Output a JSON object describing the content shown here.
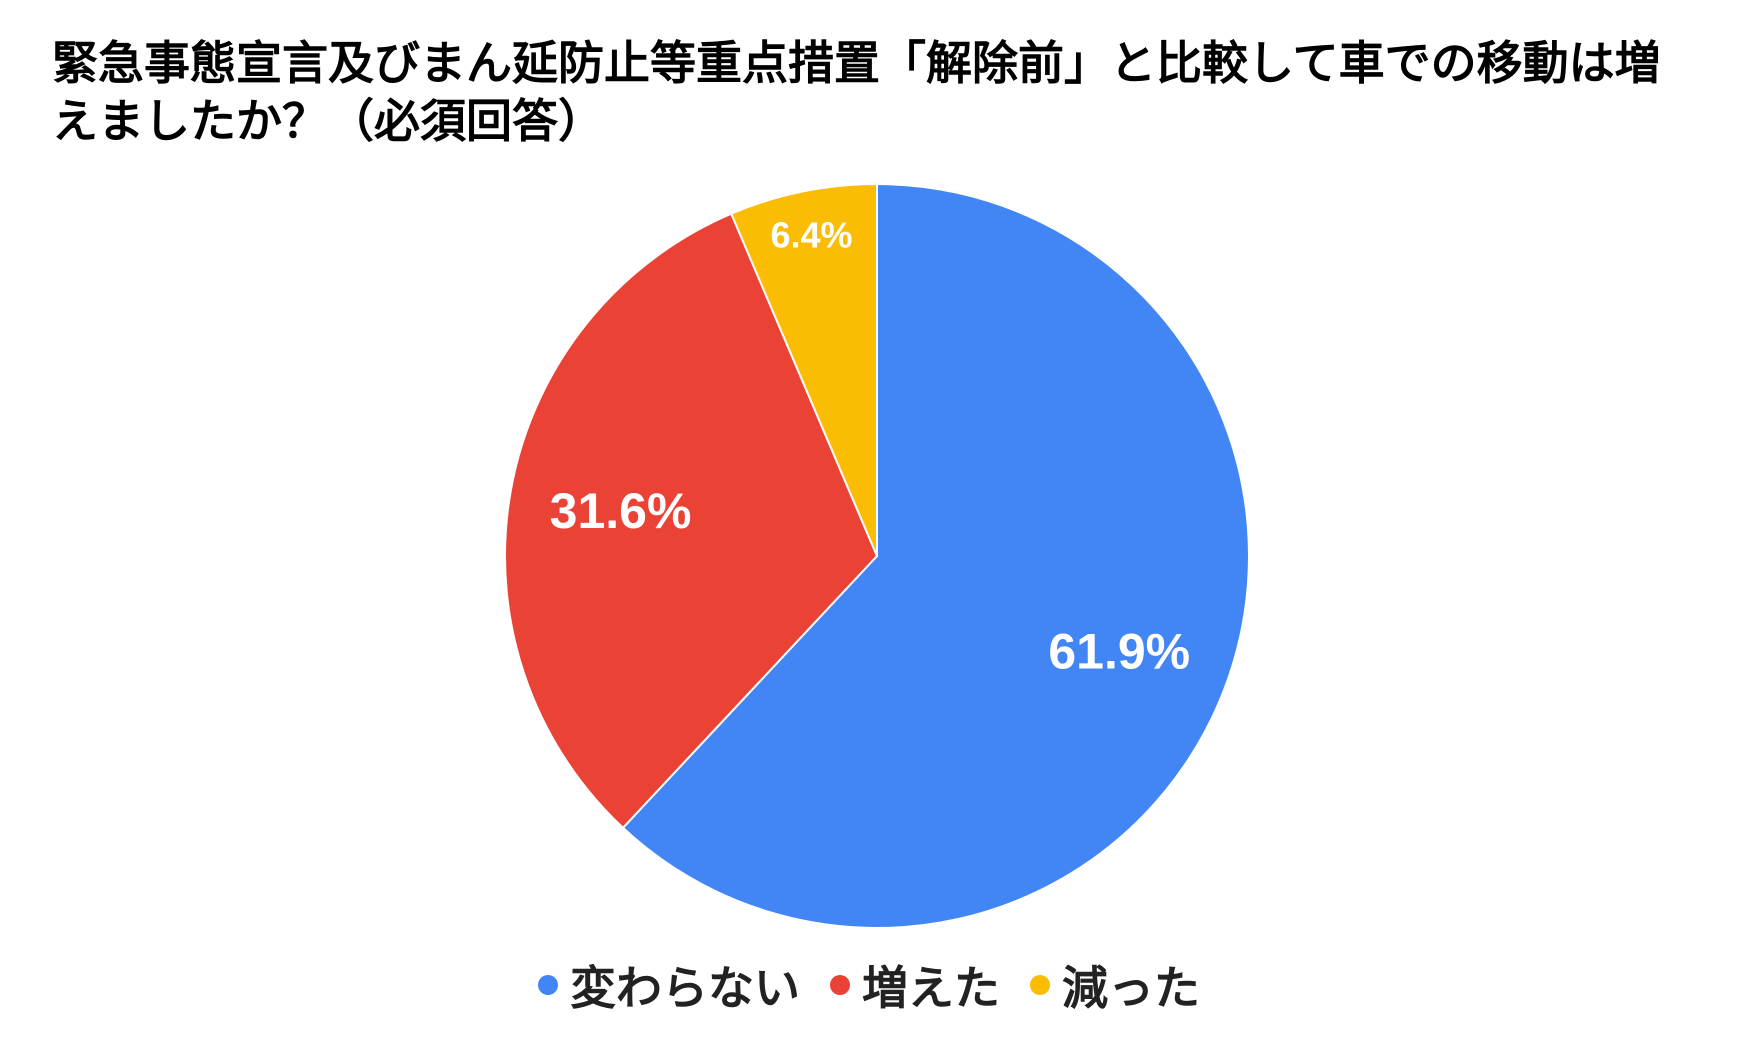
{
  "chart_data": {
    "type": "pie",
    "title": "緊急事態宣言及びまん延防止等重点措置「解除前」と比較して車での移動は増えましたか？（必須回答）",
    "categories": [
      "変わらない",
      "増えた",
      "減った"
    ],
    "values": [
      61.9,
      31.6,
      6.4
    ],
    "value_labels": [
      "61.9%",
      "31.6%",
      "6.4%"
    ],
    "colors": [
      "#4285F4",
      "#EA4335",
      "#FBBC04"
    ],
    "start": "12 o'clock",
    "direction": "clockwise",
    "legend": {
      "position": "bottom",
      "marker": "dot"
    }
  }
}
